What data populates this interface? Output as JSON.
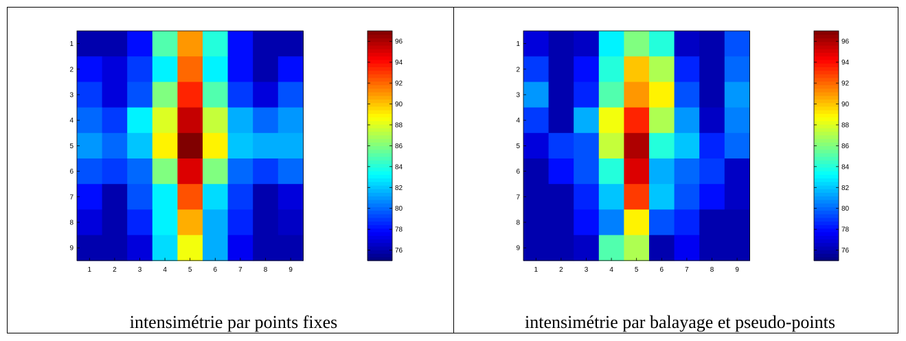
{
  "captions": {
    "left": "intensimétrie par points fixes",
    "right": "intensimétrie par balayage et pseudo-points"
  },
  "chart_data": [
    {
      "type": "heatmap",
      "title": "",
      "xlabel": "",
      "ylabel": "",
      "x_categories": [
        "1",
        "2",
        "3",
        "4",
        "5",
        "6",
        "7",
        "8",
        "9"
      ],
      "y_categories": [
        "1",
        "2",
        "3",
        "4",
        "5",
        "6",
        "7",
        "8",
        "9"
      ],
      "values": [
        [
          76,
          76,
          78,
          85,
          91,
          84,
          78,
          76,
          76
        ],
        [
          78,
          77,
          79,
          83,
          92,
          83,
          78,
          76,
          78
        ],
        [
          79,
          77,
          79.5,
          86,
          93.5,
          85,
          79,
          77,
          79.5
        ],
        [
          80,
          79,
          83,
          88,
          95.5,
          87.5,
          81.5,
          80,
          81
        ],
        [
          81,
          80,
          82,
          89,
          97,
          89,
          82,
          81.5,
          81.5
        ],
        [
          79.5,
          79,
          80,
          86,
          95,
          86,
          80,
          79,
          80
        ],
        [
          78,
          76,
          79.5,
          83,
          92.5,
          82.5,
          79,
          76,
          77
        ],
        [
          77,
          76,
          78.5,
          83,
          90.5,
          81.5,
          78.5,
          76,
          76.5
        ],
        [
          76,
          76,
          77,
          82.5,
          88.5,
          81.5,
          77.5,
          76,
          76
        ]
      ],
      "colorbar": {
        "min": 75,
        "max": 97,
        "ticks": [
          76,
          78,
          80,
          82,
          84,
          86,
          88,
          90,
          92,
          94,
          96
        ]
      },
      "colormap": "jet"
    },
    {
      "type": "heatmap",
      "title": "",
      "xlabel": "",
      "ylabel": "",
      "x_categories": [
        "1",
        "2",
        "3",
        "4",
        "5",
        "6",
        "7",
        "8",
        "9"
      ],
      "y_categories": [
        "1",
        "2",
        "3",
        "4",
        "5",
        "6",
        "7",
        "8",
        "9"
      ],
      "values": [
        [
          77,
          76,
          76.5,
          83,
          86,
          84,
          76.5,
          76,
          79.5
        ],
        [
          79,
          76,
          78,
          84,
          90,
          87,
          78.5,
          76,
          80
        ],
        [
          81,
          76,
          78.5,
          85,
          91,
          89,
          79.5,
          76,
          81
        ],
        [
          79,
          76,
          81.5,
          88.5,
          93.5,
          87,
          81,
          76.5,
          80.5
        ],
        [
          77,
          79,
          79.5,
          87.5,
          96,
          84,
          82,
          78.5,
          80
        ],
        [
          76,
          78,
          79.5,
          84,
          95,
          81.5,
          80,
          79,
          76.5
        ],
        [
          76,
          76,
          78.5,
          82,
          93,
          82,
          79.5,
          78,
          76.5
        ],
        [
          76,
          76,
          78,
          80.5,
          89,
          79.5,
          78.5,
          76,
          76
        ],
        [
          76,
          76,
          76.5,
          85,
          87,
          76,
          77.5,
          76,
          76
        ]
      ],
      "colorbar": {
        "min": 75,
        "max": 97,
        "ticks": [
          76,
          78,
          80,
          82,
          84,
          86,
          88,
          90,
          92,
          94,
          96
        ]
      },
      "colormap": "jet"
    }
  ]
}
